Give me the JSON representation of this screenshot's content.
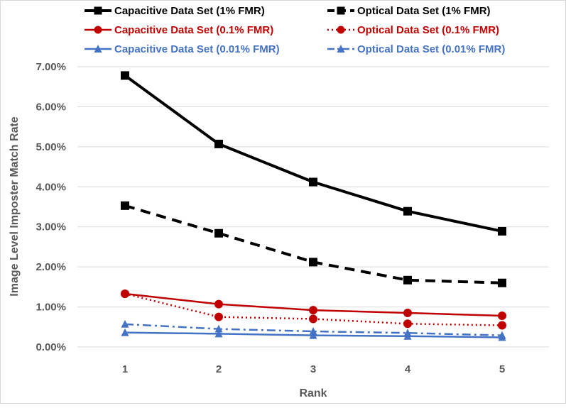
{
  "chart_data": {
    "type": "line",
    "title": "",
    "xlabel": "Rank",
    "ylabel": "Image Level Imposter Match Rate",
    "categories": [
      "1",
      "2",
      "3",
      "4",
      "5"
    ],
    "ylim": [
      0,
      0.07
    ],
    "yticks": [
      0,
      0.01,
      0.02,
      0.03,
      0.04,
      0.05,
      0.06,
      0.07
    ],
    "ytick_labels": [
      "0.00%",
      "1.00%",
      "2.00%",
      "3.00%",
      "4.00%",
      "5.00%",
      "6.00%",
      "7.00%"
    ],
    "grid": "horizontal",
    "legend_position": "top",
    "series": [
      {
        "name": "Capacitive Data Set (1% FMR)",
        "values": [
          0.0678,
          0.0507,
          0.0412,
          0.0339,
          0.0289
        ],
        "color": "#000000",
        "dash": "solid",
        "marker": "square"
      },
      {
        "name": "Optical Data Set (1% FMR)",
        "values": [
          0.0353,
          0.0284,
          0.0212,
          0.0167,
          0.016
        ],
        "color": "#000000",
        "dash": "dashed",
        "marker": "square"
      },
      {
        "name": "Capacitive Data Set (0.1% FMR)",
        "values": [
          0.0133,
          0.0107,
          0.0092,
          0.0085,
          0.0078
        ],
        "color": "#c00000",
        "dash": "solid",
        "marker": "circle"
      },
      {
        "name": "Optical Data Set (0.1% FMR)",
        "values": [
          0.0133,
          0.0075,
          0.007,
          0.0058,
          0.0054
        ],
        "color": "#c00000",
        "dash": "dotted",
        "marker": "circle"
      },
      {
        "name": "Capacitive Data Set (0.01% FMR)",
        "values": [
          0.0036,
          0.0033,
          0.0029,
          0.0027,
          0.0024
        ],
        "color": "#4472c4",
        "dash": "solid",
        "marker": "triangle"
      },
      {
        "name": "Optical Data Set (0.01% FMR)",
        "values": [
          0.0057,
          0.0045,
          0.0039,
          0.0035,
          0.0029
        ],
        "color": "#4472c4",
        "dash": "dashdot",
        "marker": "triangle"
      }
    ]
  }
}
